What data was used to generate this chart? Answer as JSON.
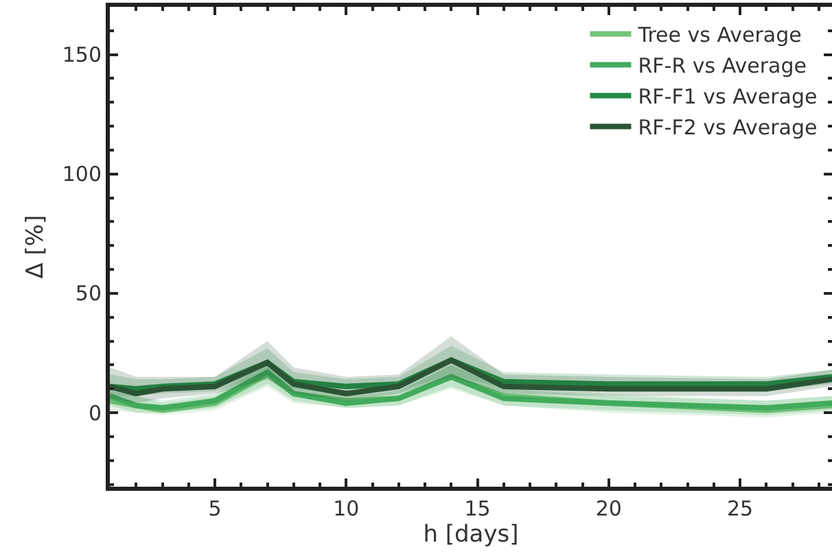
{
  "chart_data": {
    "type": "line",
    "xlabel": "h [days]",
    "ylabel": "Δ [%]",
    "x": [
      1,
      2,
      3,
      5,
      7,
      8,
      10,
      12,
      14,
      16,
      20,
      26,
      28.5
    ],
    "xlim": [
      1,
      28.5
    ],
    "xticks": [
      5,
      10,
      15,
      20,
      25
    ],
    "ylim": [
      -31,
      170
    ],
    "yticks": [
      0,
      50,
      100,
      150
    ],
    "grid": false,
    "legend": "top right",
    "marker": "none",
    "line_style": "solid",
    "series": [
      {
        "name": "Tree vs Average",
        "color": "#74c476",
        "values": [
          5,
          3,
          1,
          4,
          16,
          8,
          5,
          6,
          15,
          7,
          4,
          1,
          3
        ],
        "lower": [
          1,
          0,
          -1,
          1,
          11,
          4,
          2,
          3,
          10,
          3,
          0,
          -2,
          0
        ],
        "upper": [
          9,
          7,
          4,
          7,
          21,
          12,
          8,
          9,
          20,
          11,
          8,
          5,
          7
        ]
      },
      {
        "name": "RF-R vs Average",
        "color": "#41ab5d",
        "values": [
          7,
          3,
          2,
          5,
          17,
          8,
          4,
          6,
          15,
          6,
          4,
          2,
          4
        ],
        "lower": [
          3,
          0,
          0,
          2,
          12,
          5,
          2,
          3,
          11,
          3,
          1,
          -1,
          1
        ],
        "upper": [
          11,
          7,
          5,
          8,
          22,
          12,
          7,
          9,
          20,
          10,
          7,
          5,
          7
        ]
      },
      {
        "name": "RF-F1 vs Average",
        "color": "#238b45",
        "values": [
          11,
          10,
          11,
          12,
          21,
          13,
          11,
          12,
          22,
          13,
          12,
          12,
          15
        ],
        "lower": [
          7,
          7,
          8,
          9,
          16,
          10,
          8,
          9,
          16,
          10,
          9,
          9,
          12
        ],
        "upper": [
          16,
          14,
          14,
          15,
          27,
          17,
          14,
          15,
          28,
          17,
          16,
          15,
          18
        ]
      },
      {
        "name": "RF-F2 vs Average",
        "color": "#2a5434",
        "values": [
          11,
          8,
          10,
          11,
          21,
          12,
          8,
          11,
          22,
          11,
          10,
          10,
          14
        ],
        "lower": [
          6,
          4,
          6,
          8,
          14,
          8,
          5,
          8,
          15,
          8,
          7,
          7,
          11
        ],
        "upper": [
          19,
          15,
          15,
          15,
          30,
          19,
          15,
          16,
          32,
          16,
          15,
          14,
          18
        ]
      }
    ]
  }
}
